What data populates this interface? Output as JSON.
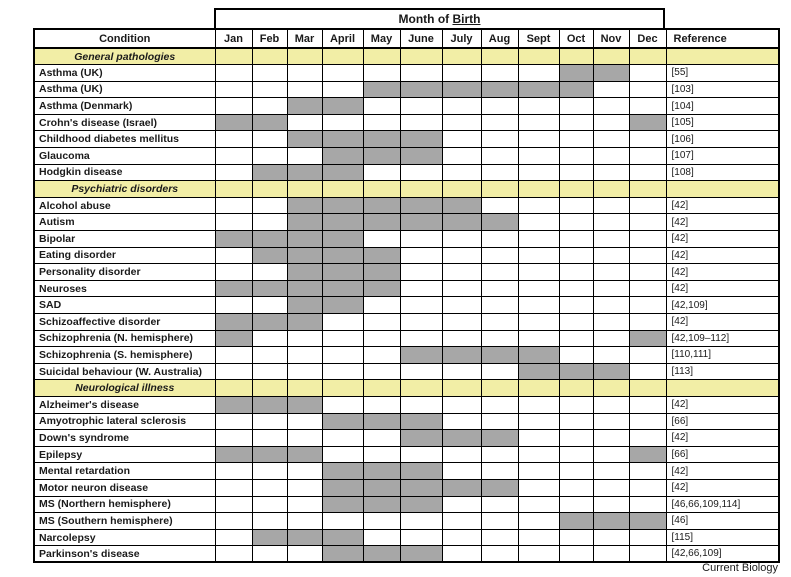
{
  "title": {
    "prefix": "Month of ",
    "underlined": "Birth"
  },
  "columns": {
    "condition": "Condition",
    "months": [
      "Jan",
      "Feb",
      "Mar",
      "April",
      "May",
      "June",
      "July",
      "Aug",
      "Sept",
      "Oct",
      "Nov",
      "Dec"
    ],
    "reference": "Reference"
  },
  "colors": {
    "section_bg": "#f2eea6",
    "shaded_cell": "#a7a7a7",
    "border": "#000000"
  },
  "sections": [
    {
      "label": "General pathologies",
      "rows": [
        {
          "condition": "Asthma (UK)",
          "shaded_months": [
            "Oct",
            "Nov"
          ],
          "reference": "[55]"
        },
        {
          "condition": "Asthma (UK)",
          "shaded_months": [
            "May",
            "June",
            "July",
            "Aug",
            "Sept",
            "Oct"
          ],
          "reference": "[103]"
        },
        {
          "condition": "Asthma (Denmark)",
          "shaded_months": [
            "Mar",
            "April"
          ],
          "reference": "[104]"
        },
        {
          "condition": "Crohn's disease (Israel)",
          "shaded_months": [
            "Jan",
            "Feb",
            "Dec"
          ],
          "reference": "[105]"
        },
        {
          "condition": "Childhood diabetes mellitus",
          "shaded_months": [
            "Mar",
            "April",
            "May",
            "June"
          ],
          "reference": "[106]"
        },
        {
          "condition": "Glaucoma",
          "shaded_months": [
            "April",
            "May",
            "June"
          ],
          "reference": "[107]"
        },
        {
          "condition": "Hodgkin disease",
          "shaded_months": [
            "Feb",
            "Mar",
            "April"
          ],
          "reference": "[108]"
        }
      ]
    },
    {
      "label": "Psychiatric disorders",
      "rows": [
        {
          "condition": "Alcohol abuse",
          "shaded_months": [
            "Mar",
            "April",
            "May",
            "June",
            "July"
          ],
          "reference": "[42]"
        },
        {
          "condition": "Autism",
          "shaded_months": [
            "Mar",
            "April",
            "May",
            "June",
            "July",
            "Aug"
          ],
          "reference": "[42]"
        },
        {
          "condition": "Bipolar",
          "shaded_months": [
            "Jan",
            "Feb",
            "Mar",
            "April"
          ],
          "reference": "[42]"
        },
        {
          "condition": "Eating disorder",
          "shaded_months": [
            "Feb",
            "Mar",
            "April",
            "May"
          ],
          "reference": "[42]"
        },
        {
          "condition": "Personality disorder",
          "shaded_months": [
            "Mar",
            "April",
            "May"
          ],
          "reference": "[42]"
        },
        {
          "condition": "Neuroses",
          "shaded_months": [
            "Jan",
            "Feb",
            "Mar",
            "April",
            "May"
          ],
          "reference": "[42]"
        },
        {
          "condition": "SAD",
          "shaded_months": [
            "Mar",
            "April"
          ],
          "reference": "[42,109]"
        },
        {
          "condition": "Schizoaffective disorder",
          "shaded_months": [
            "Jan",
            "Feb",
            "Mar"
          ],
          "reference": "[42]"
        },
        {
          "condition": "Schizophrenia (N. hemisphere)",
          "shaded_months": [
            "Jan",
            "Dec"
          ],
          "reference": "[42,109–112]"
        },
        {
          "condition": "Schizophrenia (S. hemisphere)",
          "shaded_months": [
            "June",
            "July",
            "Aug",
            "Sept"
          ],
          "reference": "[110,111]"
        },
        {
          "condition": "Suicidal behaviour (W. Australia)",
          "shaded_months": [
            "Sept",
            "Oct",
            "Nov"
          ],
          "reference": "[113]"
        }
      ]
    },
    {
      "label": "Neurological illness",
      "rows": [
        {
          "condition": "Alzheimer's disease",
          "shaded_months": [
            "Jan",
            "Feb",
            "Mar"
          ],
          "reference": "[42]"
        },
        {
          "condition": "Amyotrophic lateral sclerosis",
          "shaded_months": [
            "April",
            "May",
            "June"
          ],
          "reference": "[66]"
        },
        {
          "condition": "Down's syndrome",
          "shaded_months": [
            "June",
            "July",
            "Aug"
          ],
          "reference": "[42]"
        },
        {
          "condition": "Epilepsy",
          "shaded_months": [
            "Jan",
            "Feb",
            "Mar",
            "Dec"
          ],
          "reference": "[66]"
        },
        {
          "condition": "Mental retardation",
          "shaded_months": [
            "April",
            "May",
            "June"
          ],
          "reference": "[42]"
        },
        {
          "condition": "Motor neuron disease",
          "shaded_months": [
            "April",
            "May",
            "June",
            "July",
            "Aug"
          ],
          "reference": "[42]"
        },
        {
          "condition": "MS (Northern hemisphere)",
          "shaded_months": [
            "April",
            "May",
            "June"
          ],
          "reference": "[46,66,109,114]"
        },
        {
          "condition": "MS (Southern hemisphere)",
          "shaded_months": [
            "Oct",
            "Nov",
            "Dec"
          ],
          "reference": "[46]"
        },
        {
          "condition": "Narcolepsy",
          "shaded_months": [
            "Feb",
            "Mar",
            "April"
          ],
          "reference": "[115]"
        },
        {
          "condition": "Parkinson's disease",
          "shaded_months": [
            "April",
            "May",
            "June"
          ],
          "reference": "[42,66,109]"
        }
      ]
    }
  ],
  "footer": "Current Biology"
}
